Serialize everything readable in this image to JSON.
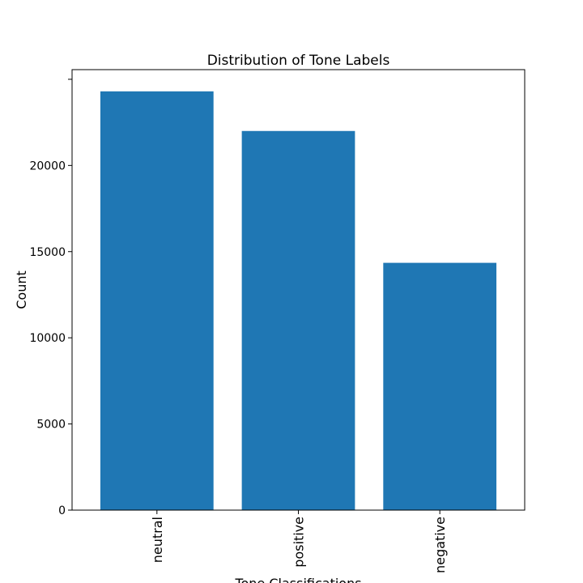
{
  "chart_data": {
    "type": "bar",
    "title": "Distribution of Tone Labels",
    "xlabel": "Tone Classifications",
    "ylabel": "Count",
    "categories": [
      "neutral",
      "positive",
      "negative"
    ],
    "values": [
      24300,
      22000,
      14350
    ],
    "ylim": [
      0,
      25560
    ],
    "yticks": [
      0,
      5000,
      10000,
      15000,
      20000,
      25000
    ],
    "ytick_labels": [
      "0",
      "5000",
      "10000",
      "15000",
      "20000",
      ""
    ],
    "bar_color": "#1f77b4",
    "grid": false,
    "legend": "none"
  }
}
